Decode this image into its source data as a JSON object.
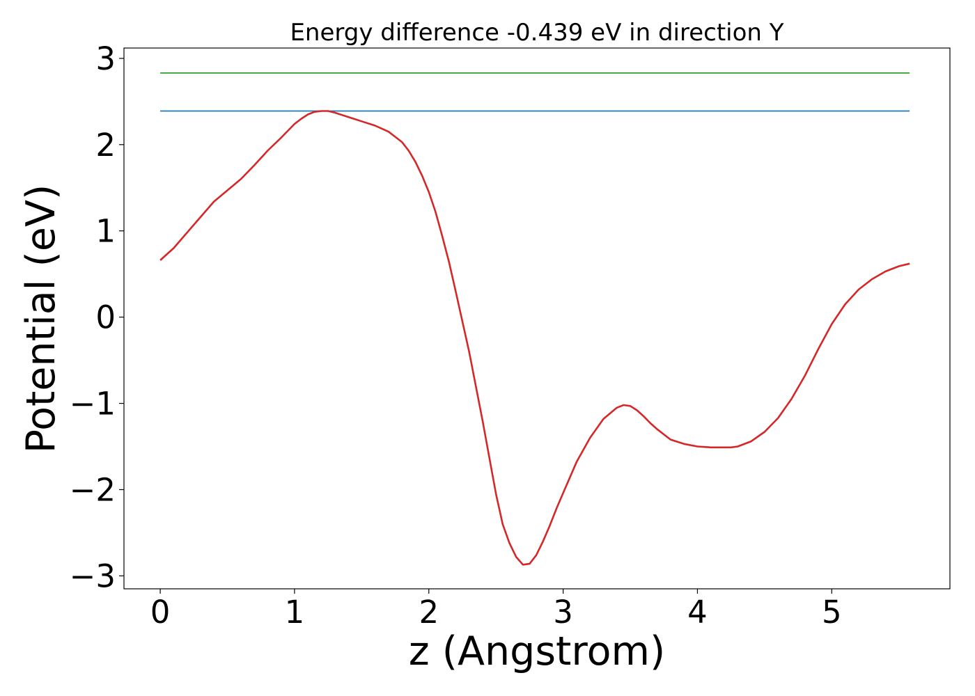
{
  "chart_data": {
    "type": "line",
    "title": "Energy difference -0.439 eV in direction Y",
    "xlabel": "z (Angstrom)",
    "ylabel": "Potential (eV)",
    "xlim": [
      -0.27,
      5.88
    ],
    "ylim": [
      -3.15,
      3.12
    ],
    "xticks": [
      0,
      1,
      2,
      3,
      4,
      5
    ],
    "yticks": [
      3,
      2,
      1,
      0,
      -1,
      -2,
      -3
    ],
    "xtick_labels": [
      "0",
      "1",
      "2",
      "3",
      "4",
      "5"
    ],
    "ytick_labels": [
      "3",
      "2",
      "1",
      "0",
      "−1",
      "−2",
      "−3"
    ],
    "grid": false,
    "series": [
      {
        "color": "#2ca02c",
        "x": [
          0,
          5.58
        ],
        "y": [
          2.83,
          2.83
        ]
      },
      {
        "color": "#1f77b4",
        "x": [
          0,
          5.58
        ],
        "y": [
          2.39,
          2.39
        ]
      },
      {
        "color": "#d62728",
        "x": [
          0,
          0.1,
          0.2,
          0.3,
          0.4,
          0.5,
          0.6,
          0.7,
          0.8,
          0.9,
          1.0,
          1.05,
          1.1,
          1.15,
          1.2,
          1.25,
          1.3,
          1.4,
          1.5,
          1.6,
          1.7,
          1.75,
          1.8,
          1.85,
          1.9,
          1.95,
          2.0,
          2.05,
          2.1,
          2.15,
          2.2,
          2.3,
          2.4,
          2.5,
          2.55,
          2.6,
          2.65,
          2.7,
          2.75,
          2.8,
          2.85,
          2.9,
          2.95,
          3.0,
          3.1,
          3.2,
          3.3,
          3.4,
          3.45,
          3.5,
          3.55,
          3.6,
          3.65,
          3.7,
          3.8,
          3.9,
          4.0,
          4.1,
          4.2,
          4.25,
          4.3,
          4.4,
          4.5,
          4.6,
          4.7,
          4.8,
          4.9,
          5.0,
          5.1,
          5.2,
          5.3,
          5.4,
          5.5,
          5.58
        ],
        "y": [
          0.66,
          0.8,
          0.98,
          1.16,
          1.34,
          1.47,
          1.6,
          1.76,
          1.93,
          2.08,
          2.24,
          2.3,
          2.35,
          2.38,
          2.39,
          2.39,
          2.37,
          2.32,
          2.27,
          2.22,
          2.15,
          2.09,
          2.03,
          1.93,
          1.8,
          1.64,
          1.45,
          1.22,
          0.94,
          0.64,
          0.3,
          -0.4,
          -1.2,
          -2.05,
          -2.4,
          -2.62,
          -2.78,
          -2.87,
          -2.86,
          -2.76,
          -2.6,
          -2.42,
          -2.22,
          -2.04,
          -1.68,
          -1.4,
          -1.18,
          -1.05,
          -1.02,
          -1.03,
          -1.08,
          -1.15,
          -1.23,
          -1.3,
          -1.42,
          -1.47,
          -1.5,
          -1.51,
          -1.51,
          -1.51,
          -1.5,
          -1.44,
          -1.33,
          -1.17,
          -0.95,
          -0.68,
          -0.37,
          -0.08,
          0.15,
          0.32,
          0.44,
          0.53,
          0.59,
          0.62
        ]
      }
    ]
  }
}
